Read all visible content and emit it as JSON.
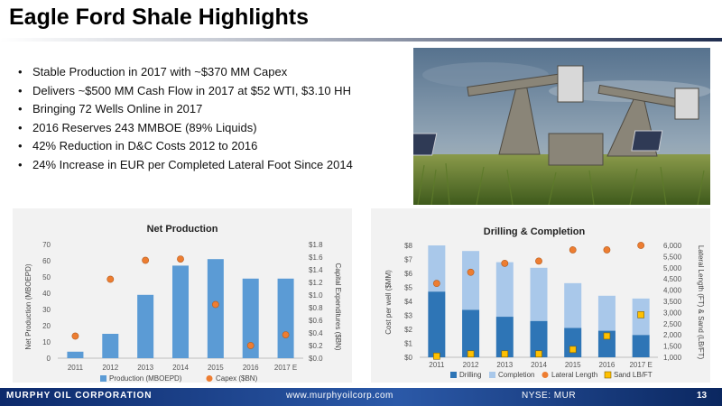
{
  "slide": {
    "title": "Eagle Ford Shale Highlights",
    "bullets": [
      "Stable Production in 2017 with ~$370 MM Capex",
      "Delivers ~$500 MM Cash Flow in 2017 at $52 WTI, $3.10 HH",
      "Bringing 72 Wells Online in 2017",
      "2016 Reserves 243 MMBOE (89% Liquids)",
      "42% Reduction in D&C Costs 2012 to 2016",
      "24% Increase in EUR per Completed Lateral Foot Since 2014"
    ],
    "photo_icon": "oil-pumpjack-photo"
  },
  "footer": {
    "company": "MURPHY OIL CORPORATION",
    "url": "www.murphyoilcorp.com",
    "ticker": "NYSE: MUR",
    "page": "13"
  },
  "colors": {
    "bar_blue": "#5b9bd5",
    "drilling": "#2e75b6",
    "completion": "#a9c8ea",
    "dot_orange": "#ed7d31",
    "sand_yellow": "#ffc000",
    "panel_bg": "#f2f2f2"
  },
  "chart_data": [
    {
      "type": "bar",
      "title": "Net Production",
      "categories": [
        "2011",
        "2012",
        "2013",
        "2014",
        "2015",
        "2016",
        "2017 E"
      ],
      "series": [
        {
          "name": "Production (MBOEPD)",
          "kind": "bar",
          "axis": "left",
          "values": [
            4,
            15,
            39,
            57,
            61,
            49,
            49
          ]
        },
        {
          "name": "Capex ($BN)",
          "kind": "dot",
          "axis": "right",
          "values": [
            0.35,
            1.25,
            1.55,
            1.57,
            0.85,
            0.2,
            0.37
          ]
        }
      ],
      "ylabel": "Net Production (MBOEPD)",
      "y2label": "Capital Expenditures ($BN)",
      "ylim": [
        0,
        70
      ],
      "yticks": [
        "0",
        "10",
        "20",
        "30",
        "40",
        "50",
        "60",
        "70"
      ],
      "y2lim": [
        0,
        1.8
      ],
      "y2ticks": [
        "$0.0",
        "$0.2",
        "$0.4",
        "$0.6",
        "$0.8",
        "$1.0",
        "$1.2",
        "$1.4",
        "$1.6",
        "$1.8"
      ],
      "legend": "bottom",
      "grid": false
    },
    {
      "type": "bar",
      "title": "Drilling & Completion",
      "stacked": true,
      "categories": [
        "2011",
        "2012",
        "2013",
        "2014",
        "2015",
        "2016",
        "2017 E"
      ],
      "series": [
        {
          "name": "Drilling",
          "kind": "bar",
          "axis": "left",
          "values": [
            4.7,
            3.4,
            2.9,
            2.6,
            2.1,
            1.9,
            1.6
          ]
        },
        {
          "name": "Completion",
          "kind": "bar",
          "axis": "left",
          "values": [
            3.3,
            4.2,
            3.9,
            3.8,
            3.2,
            2.5,
            2.6
          ]
        },
        {
          "name": "Lateral Length",
          "kind": "dot",
          "axis": "right",
          "values": [
            4300,
            4800,
            5200,
            5300,
            5800,
            5800,
            6000
          ]
        },
        {
          "name": "Sand LB/FT",
          "kind": "square",
          "axis": "right",
          "values": [
            1050,
            1150,
            1150,
            1150,
            1350,
            1950,
            2900
          ]
        }
      ],
      "ylabel": "Cost per well ($MM)",
      "y2label": "Lateral Length (FT) & Sand (LB/FT)",
      "ylim": [
        0,
        8
      ],
      "yticks": [
        "$0",
        "$1",
        "$2",
        "$3",
        "$4",
        "$5",
        "$6",
        "$7",
        "$8"
      ],
      "y2lim": [
        1000,
        6000
      ],
      "y2ticks": [
        "1,000",
        "1,500",
        "2,000",
        "2,500",
        "3,000",
        "3,500",
        "4,000",
        "4,500",
        "5,000",
        "5,500",
        "6,000"
      ],
      "legend": "bottom",
      "grid": false
    }
  ]
}
